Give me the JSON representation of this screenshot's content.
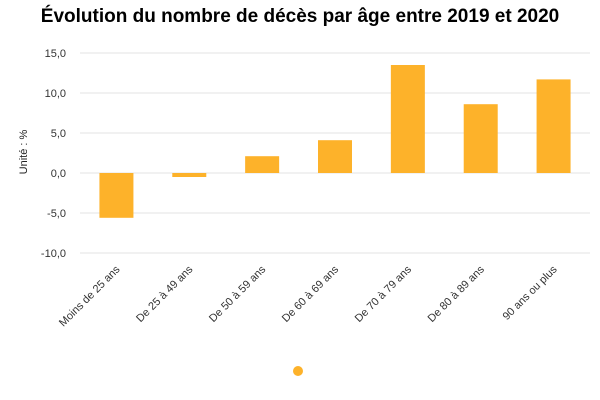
{
  "chart_data": {
    "type": "bar",
    "title": "Évolution du nombre de décès par âge entre 2019 et 2020",
    "ylabel": "Unité : %",
    "xlabel": "",
    "categories": [
      "Moins de 25 ans",
      "De 25 à 49 ans",
      "De 50 à 59 ans",
      "De 60 à 69 ans",
      "De 70 à 79 ans",
      "De 80 à 89 ans",
      "90 ans ou plus"
    ],
    "values": [
      -5.6,
      -0.5,
      2.1,
      4.1,
      13.5,
      8.6,
      11.7
    ],
    "ylim": [
      -10,
      15
    ],
    "yticks": [
      "15,0",
      "10,0",
      "5,0",
      "0,0",
      "-5,0",
      "-10,0"
    ],
    "ytick_values": [
      15,
      10,
      5,
      0,
      -5,
      -10
    ],
    "grid": true,
    "legend": "bottom",
    "bar_color": "#fdb22a"
  }
}
